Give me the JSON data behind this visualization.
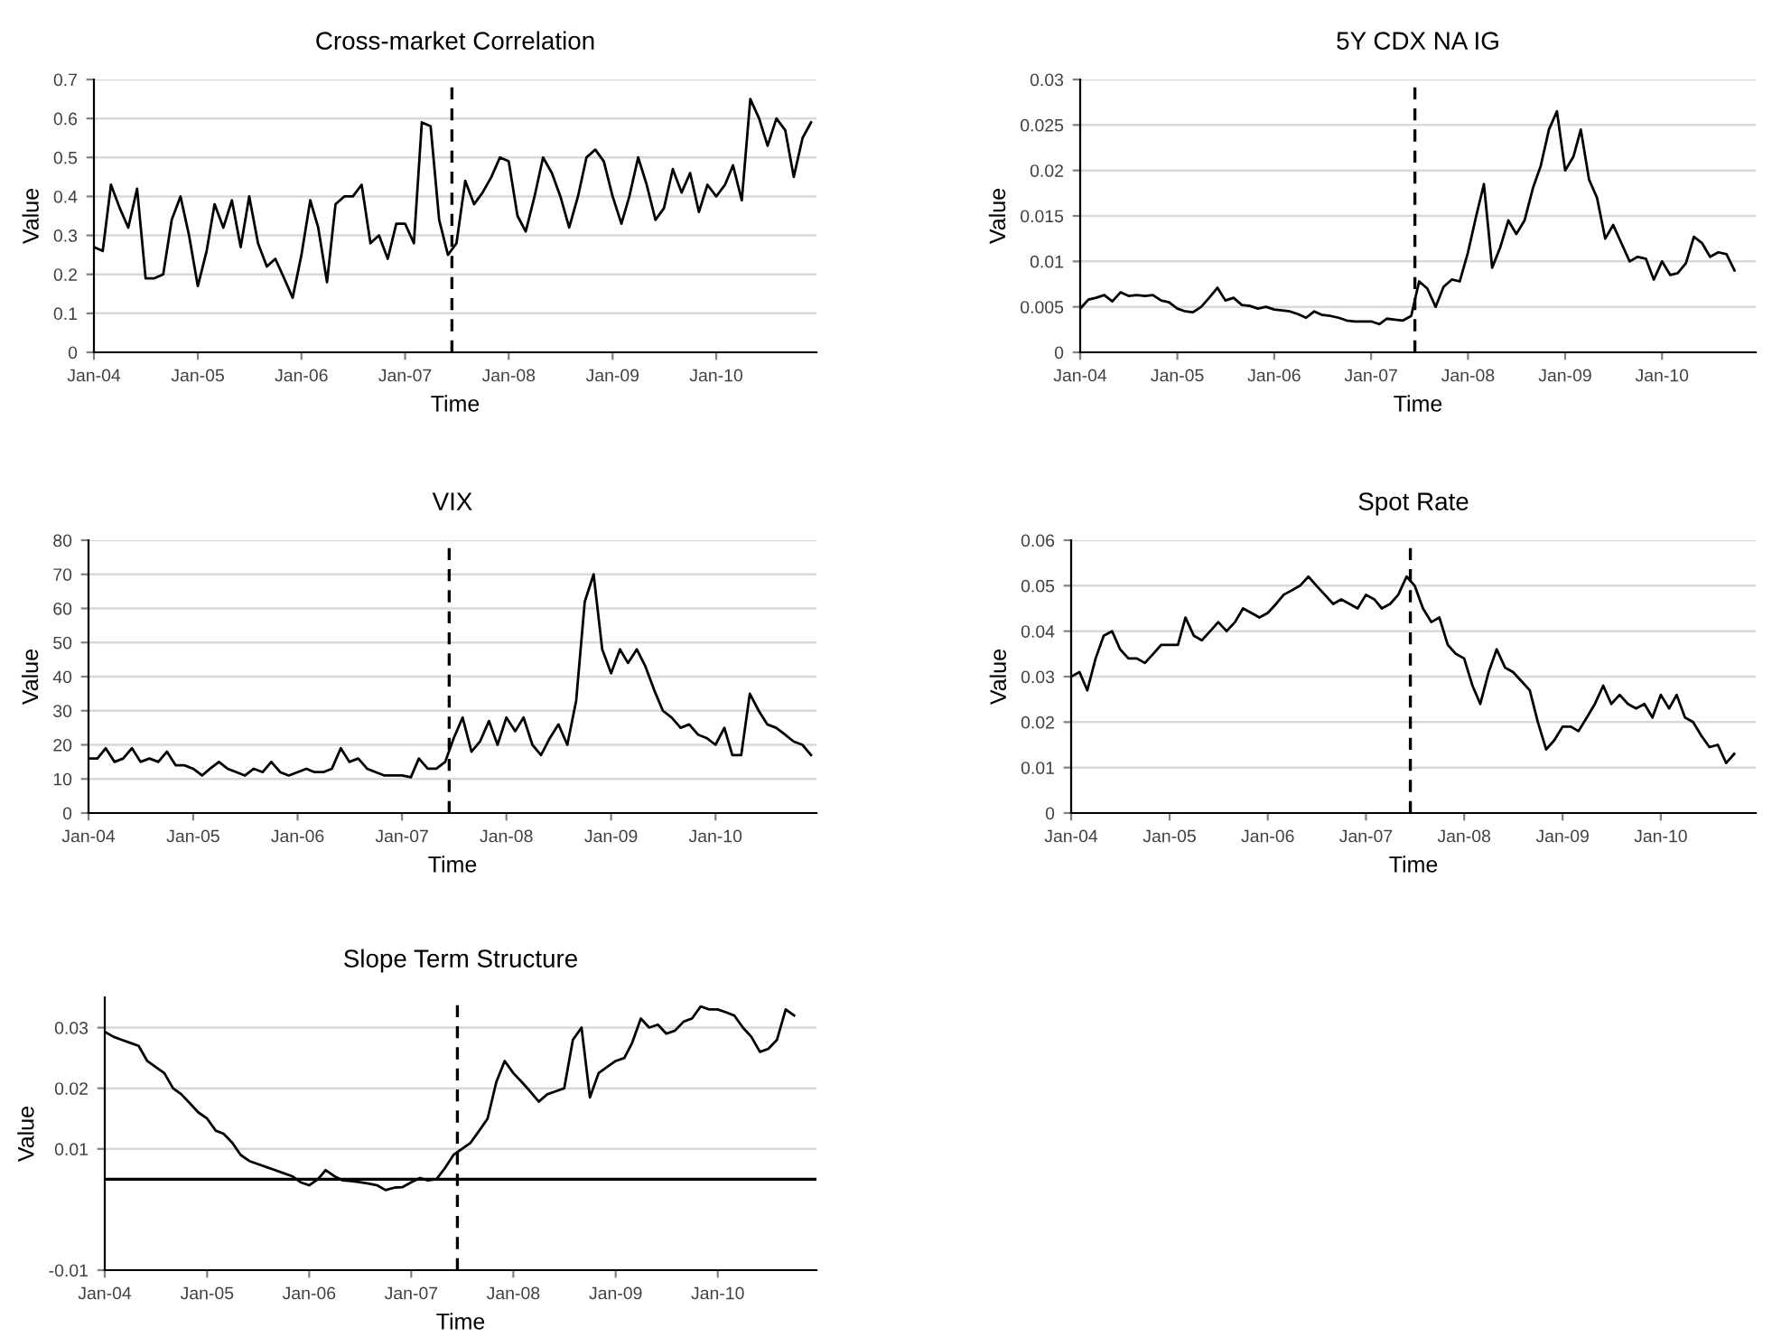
{
  "chart_data": [
    {
      "type": "line",
      "title": "Cross-market Correlation",
      "xlabel": "Time",
      "ylabel": "Value",
      "grid": "y",
      "line_style": "solid",
      "marker": "none",
      "x": [
        "2004-01",
        "2004-02",
        "2004-03",
        "2004-04",
        "2004-05",
        "2004-06",
        "2004-07",
        "2004-08",
        "2004-09",
        "2004-10",
        "2004-11",
        "2004-12",
        "2005-01",
        "2005-02",
        "2005-03",
        "2005-04",
        "2005-05",
        "2005-06",
        "2005-07",
        "2005-08",
        "2005-09",
        "2005-10",
        "2005-11",
        "2005-12",
        "2006-01",
        "2006-02",
        "2006-03",
        "2006-04",
        "2006-05",
        "2006-06",
        "2006-07",
        "2006-08",
        "2006-09",
        "2006-10",
        "2006-11",
        "2006-12",
        "2007-01",
        "2007-02",
        "2007-03",
        "2007-04",
        "2007-05",
        "2007-06",
        "2007-07",
        "2007-08",
        "2007-09",
        "2007-10",
        "2007-11",
        "2007-12",
        "2008-01",
        "2008-02",
        "2008-03",
        "2008-04",
        "2008-05",
        "2008-06",
        "2008-07",
        "2008-08",
        "2008-09",
        "2008-10",
        "2008-11",
        "2008-12",
        "2009-01",
        "2009-02",
        "2009-03",
        "2009-04",
        "2009-05",
        "2009-06",
        "2009-07",
        "2009-08",
        "2009-09",
        "2009-10",
        "2009-11",
        "2009-12",
        "2010-01",
        "2010-02",
        "2010-03",
        "2010-04",
        "2010-05",
        "2010-06",
        "2010-07",
        "2010-08",
        "2010-09",
        "2010-10",
        "2010-11",
        "2010-12"
      ],
      "series": [
        {
          "color": "#000000",
          "values": [
            0.27,
            0.26,
            0.43,
            0.37,
            0.32,
            0.42,
            0.19,
            0.19,
            0.2,
            0.34,
            0.4,
            0.3,
            0.17,
            0.26,
            0.38,
            0.32,
            0.39,
            0.27,
            0.4,
            0.28,
            0.22,
            0.24,
            0.19,
            0.14,
            0.25,
            0.39,
            0.32,
            0.18,
            0.38,
            0.4,
            0.4,
            0.43,
            0.28,
            0.3,
            0.24,
            0.33,
            0.33,
            0.28,
            0.59,
            0.58,
            0.34,
            0.25,
            0.28,
            0.44,
            0.38,
            0.41,
            0.45,
            0.5,
            0.49,
            0.35,
            0.31,
            0.4,
            0.5,
            0.46,
            0.4,
            0.32,
            0.4,
            0.5,
            0.52,
            0.49,
            0.4,
            0.33,
            0.4,
            0.5,
            0.43,
            0.34,
            0.37,
            0.47,
            0.41,
            0.46,
            0.36,
            0.43,
            0.4,
            0.43,
            0.48,
            0.39,
            0.65,
            0.6,
            0.53,
            0.6,
            0.57,
            0.45,
            0.55,
            0.59
          ]
        }
      ],
      "xlim": [
        "2004-01-01",
        "2010-12-20"
      ],
      "ylim": [
        0,
        0.7
      ],
      "yticks": [
        0,
        0.1,
        0.2,
        0.3,
        0.4,
        0.5,
        0.6,
        0.7
      ],
      "xticks": [
        {
          "value": "2004-01-01",
          "label": "Jan-04"
        },
        {
          "value": "2005-01-01",
          "label": "Jan-05"
        },
        {
          "value": "2006-01-01",
          "label": "Jan-06"
        },
        {
          "value": "2007-01-01",
          "label": "Jan-07"
        },
        {
          "value": "2008-01-01",
          "label": "Jan-08"
        },
        {
          "value": "2009-01-01",
          "label": "Jan-09"
        },
        {
          "value": "2010-01-01",
          "label": "Jan-10"
        }
      ],
      "ref_lines": [
        {
          "axis": "x",
          "value": "2007-06-15",
          "color": "#000000",
          "line_style": "dashed"
        }
      ]
    },
    {
      "type": "line",
      "title": "5Y CDX NA IG",
      "xlabel": "Time",
      "ylabel": "Value",
      "grid": "y",
      "line_style": "solid",
      "marker": "none",
      "x": [
        "2004-01",
        "2004-02",
        "2004-03",
        "2004-04",
        "2004-05",
        "2004-06",
        "2004-07",
        "2004-08",
        "2004-09",
        "2004-10",
        "2004-11",
        "2004-12",
        "2005-01",
        "2005-02",
        "2005-03",
        "2005-04",
        "2005-05",
        "2005-06",
        "2005-07",
        "2005-08",
        "2005-09",
        "2005-10",
        "2005-11",
        "2005-12",
        "2006-01",
        "2006-02",
        "2006-03",
        "2006-04",
        "2006-05",
        "2006-06",
        "2006-07",
        "2006-08",
        "2006-09",
        "2006-10",
        "2006-11",
        "2006-12",
        "2007-01",
        "2007-02",
        "2007-03",
        "2007-04",
        "2007-05",
        "2007-06",
        "2007-07",
        "2007-08",
        "2007-09",
        "2007-10",
        "2007-11",
        "2007-12",
        "2008-01",
        "2008-02",
        "2008-03",
        "2008-04",
        "2008-05",
        "2008-06",
        "2008-07",
        "2008-08",
        "2008-09",
        "2008-10",
        "2008-11",
        "2008-12",
        "2009-01",
        "2009-02",
        "2009-03",
        "2009-04",
        "2009-05",
        "2009-06",
        "2009-07",
        "2009-08",
        "2009-09",
        "2009-10",
        "2009-11",
        "2009-12",
        "2010-01",
        "2010-02",
        "2010-03",
        "2010-04",
        "2010-05",
        "2010-06",
        "2010-07",
        "2010-08",
        "2010-09",
        "2010-10"
      ],
      "series": [
        {
          "color": "#000000",
          "values": [
            0.0048,
            0.0058,
            0.006,
            0.0063,
            0.0056,
            0.0066,
            0.0062,
            0.0063,
            0.0062,
            0.0063,
            0.0057,
            0.0055,
            0.0048,
            0.0045,
            0.0044,
            0.005,
            0.006,
            0.0071,
            0.0057,
            0.006,
            0.0052,
            0.0051,
            0.0048,
            0.005,
            0.0047,
            0.0046,
            0.0045,
            0.0042,
            0.0038,
            0.0045,
            0.0041,
            0.004,
            0.0038,
            0.0035,
            0.0034,
            0.0034,
            0.0034,
            0.0031,
            0.0037,
            0.0036,
            0.0035,
            0.004,
            0.0078,
            0.007,
            0.005,
            0.0072,
            0.008,
            0.0078,
            0.011,
            0.015,
            0.0185,
            0.0093,
            0.0115,
            0.0145,
            0.013,
            0.0145,
            0.018,
            0.0205,
            0.0245,
            0.0265,
            0.02,
            0.0215,
            0.0245,
            0.019,
            0.017,
            0.0125,
            0.014,
            0.012,
            0.01,
            0.0105,
            0.0103,
            0.008,
            0.01,
            0.0085,
            0.0087,
            0.0098,
            0.0127,
            0.012,
            0.0105,
            0.011,
            0.0108,
            0.009
          ]
        }
      ],
      "xlim": [
        "2004-01-01",
        "2010-12-20"
      ],
      "ylim": [
        0,
        0.03
      ],
      "yticks": [
        0,
        0.005,
        0.01,
        0.015,
        0.02,
        0.025,
        0.03
      ],
      "xticks": [
        {
          "value": "2004-01-01",
          "label": "Jan-04"
        },
        {
          "value": "2005-01-01",
          "label": "Jan-05"
        },
        {
          "value": "2006-01-01",
          "label": "Jan-06"
        },
        {
          "value": "2007-01-01",
          "label": "Jan-07"
        },
        {
          "value": "2008-01-01",
          "label": "Jan-08"
        },
        {
          "value": "2009-01-01",
          "label": "Jan-09"
        },
        {
          "value": "2010-01-01",
          "label": "Jan-10"
        }
      ],
      "ref_lines": [
        {
          "axis": "x",
          "value": "2007-06-15",
          "color": "#000000",
          "line_style": "dashed"
        }
      ]
    },
    {
      "type": "line",
      "title": "VIX",
      "xlabel": "Time",
      "ylabel": "Value",
      "grid": "y",
      "line_style": "solid",
      "marker": "none",
      "x": [
        "2004-01",
        "2004-02",
        "2004-03",
        "2004-04",
        "2004-05",
        "2004-06",
        "2004-07",
        "2004-08",
        "2004-09",
        "2004-10",
        "2004-11",
        "2004-12",
        "2005-01",
        "2005-02",
        "2005-03",
        "2005-04",
        "2005-05",
        "2005-06",
        "2005-07",
        "2005-08",
        "2005-09",
        "2005-10",
        "2005-11",
        "2005-12",
        "2006-01",
        "2006-02",
        "2006-03",
        "2006-04",
        "2006-05",
        "2006-06",
        "2006-07",
        "2006-08",
        "2006-09",
        "2006-10",
        "2006-11",
        "2006-12",
        "2007-01",
        "2007-02",
        "2007-03",
        "2007-04",
        "2007-05",
        "2007-06",
        "2007-07",
        "2007-08",
        "2007-09",
        "2007-10",
        "2007-11",
        "2007-12",
        "2008-01",
        "2008-02",
        "2008-03",
        "2008-04",
        "2008-05",
        "2008-06",
        "2008-07",
        "2008-08",
        "2008-09",
        "2008-10",
        "2008-11",
        "2008-12",
        "2009-01",
        "2009-02",
        "2009-03",
        "2009-04",
        "2009-05",
        "2009-06",
        "2009-07",
        "2009-08",
        "2009-09",
        "2009-10",
        "2009-11",
        "2009-12",
        "2010-01",
        "2010-02",
        "2010-03",
        "2010-04",
        "2010-05",
        "2010-06",
        "2010-07",
        "2010-08",
        "2010-09",
        "2010-10",
        "2010-11",
        "2010-12"
      ],
      "series": [
        {
          "color": "#000000",
          "values": [
            16,
            16,
            19,
            15,
            16,
            19,
            15,
            16,
            15,
            18,
            14,
            14,
            13,
            11,
            13,
            15,
            13,
            12,
            11,
            13,
            12,
            15,
            12,
            11,
            12,
            13,
            12,
            12,
            13,
            19,
            15,
            16,
            13,
            12,
            11,
            11,
            11,
            10.5,
            16,
            13,
            13,
            15,
            22,
            28,
            18,
            21,
            27,
            20,
            28,
            24,
            28,
            20,
            17,
            22,
            26,
            20,
            33,
            62,
            70,
            48,
            41,
            48,
            44,
            48,
            43,
            36,
            30,
            28,
            25,
            26,
            23,
            22,
            20,
            25,
            17,
            17,
            35,
            30,
            26,
            25,
            23,
            21,
            20,
            17
          ]
        }
      ],
      "xlim": [
        "2004-01-01",
        "2010-12-20"
      ],
      "ylim": [
        0,
        80
      ],
      "yticks": [
        0,
        10,
        20,
        30,
        40,
        50,
        60,
        70,
        80
      ],
      "xticks": [
        {
          "value": "2004-01-01",
          "label": "Jan-04"
        },
        {
          "value": "2005-01-01",
          "label": "Jan-05"
        },
        {
          "value": "2006-01-01",
          "label": "Jan-06"
        },
        {
          "value": "2007-01-01",
          "label": "Jan-07"
        },
        {
          "value": "2008-01-01",
          "label": "Jan-08"
        },
        {
          "value": "2009-01-01",
          "label": "Jan-09"
        },
        {
          "value": "2010-01-01",
          "label": "Jan-10"
        }
      ],
      "ref_lines": [
        {
          "axis": "x",
          "value": "2007-06-15",
          "color": "#000000",
          "line_style": "dashed"
        }
      ]
    },
    {
      "type": "line",
      "title": "Spot Rate",
      "xlabel": "Time",
      "ylabel": "Value",
      "grid": "y",
      "line_style": "solid",
      "marker": "none",
      "x": [
        "2004-01",
        "2004-02",
        "2004-03",
        "2004-04",
        "2004-05",
        "2004-06",
        "2004-07",
        "2004-08",
        "2004-09",
        "2004-10",
        "2004-11",
        "2004-12",
        "2005-01",
        "2005-02",
        "2005-03",
        "2005-04",
        "2005-05",
        "2005-06",
        "2005-07",
        "2005-08",
        "2005-09",
        "2005-10",
        "2005-11",
        "2005-12",
        "2006-01",
        "2006-02",
        "2006-03",
        "2006-04",
        "2006-05",
        "2006-06",
        "2006-07",
        "2006-08",
        "2006-09",
        "2006-10",
        "2006-11",
        "2006-12",
        "2007-01",
        "2007-02",
        "2007-03",
        "2007-04",
        "2007-05",
        "2007-06",
        "2007-07",
        "2007-08",
        "2007-09",
        "2007-10",
        "2007-11",
        "2007-12",
        "2008-01",
        "2008-02",
        "2008-03",
        "2008-04",
        "2008-05",
        "2008-06",
        "2008-07",
        "2008-08",
        "2008-09",
        "2008-10",
        "2008-11",
        "2008-12",
        "2009-01",
        "2009-02",
        "2009-03",
        "2009-04",
        "2009-05",
        "2009-06",
        "2009-07",
        "2009-08",
        "2009-09",
        "2009-10",
        "2009-11",
        "2009-12",
        "2010-01",
        "2010-02",
        "2010-03",
        "2010-04",
        "2010-05",
        "2010-06",
        "2010-07",
        "2010-08",
        "2010-09",
        "2010-10"
      ],
      "series": [
        {
          "color": "#000000",
          "values": [
            0.03,
            0.031,
            0.027,
            0.034,
            0.039,
            0.04,
            0.036,
            0.034,
            0.034,
            0.033,
            0.035,
            0.037,
            0.037,
            0.037,
            0.043,
            0.039,
            0.038,
            0.04,
            0.042,
            0.04,
            0.042,
            0.045,
            0.044,
            0.043,
            0.044,
            0.046,
            0.048,
            0.049,
            0.05,
            0.052,
            0.05,
            0.048,
            0.046,
            0.047,
            0.046,
            0.045,
            0.048,
            0.047,
            0.045,
            0.046,
            0.048,
            0.052,
            0.05,
            0.045,
            0.042,
            0.043,
            0.037,
            0.035,
            0.034,
            0.028,
            0.024,
            0.031,
            0.036,
            0.032,
            0.031,
            0.029,
            0.027,
            0.02,
            0.014,
            0.016,
            0.019,
            0.019,
            0.018,
            0.021,
            0.024,
            0.028,
            0.024,
            0.026,
            0.024,
            0.023,
            0.024,
            0.021,
            0.026,
            0.023,
            0.026,
            0.021,
            0.02,
            0.017,
            0.0145,
            0.015,
            0.011,
            0.013
          ]
        }
      ],
      "xlim": [
        "2004-01-01",
        "2010-12-20"
      ],
      "ylim": [
        0,
        0.06
      ],
      "yticks": [
        0,
        0.01,
        0.02,
        0.03,
        0.04,
        0.05,
        0.06
      ],
      "xticks": [
        {
          "value": "2004-01-01",
          "label": "Jan-04"
        },
        {
          "value": "2005-01-01",
          "label": "Jan-05"
        },
        {
          "value": "2006-01-01",
          "label": "Jan-06"
        },
        {
          "value": "2007-01-01",
          "label": "Jan-07"
        },
        {
          "value": "2008-01-01",
          "label": "Jan-08"
        },
        {
          "value": "2009-01-01",
          "label": "Jan-09"
        },
        {
          "value": "2010-01-01",
          "label": "Jan-10"
        }
      ],
      "ref_lines": [
        {
          "axis": "x",
          "value": "2007-06-15",
          "color": "#000000",
          "line_style": "dashed"
        }
      ]
    },
    {
      "type": "line",
      "title": "Slope Term Structure",
      "xlabel": "Time",
      "ylabel": "Value",
      "grid": "y",
      "line_style": "solid",
      "marker": "none",
      "x": [
        "2004-01",
        "2004-02",
        "2004-03",
        "2004-04",
        "2004-05",
        "2004-06",
        "2004-07",
        "2004-08",
        "2004-09",
        "2004-10",
        "2004-11",
        "2004-12",
        "2005-01",
        "2005-02",
        "2005-03",
        "2005-04",
        "2005-05",
        "2005-06",
        "2005-07",
        "2005-08",
        "2005-09",
        "2005-10",
        "2005-11",
        "2005-12",
        "2006-01",
        "2006-02",
        "2006-03",
        "2006-04",
        "2006-05",
        "2006-06",
        "2006-07",
        "2006-08",
        "2006-09",
        "2006-10",
        "2006-11",
        "2006-12",
        "2007-01",
        "2007-02",
        "2007-03",
        "2007-04",
        "2007-05",
        "2007-06",
        "2007-07",
        "2007-08",
        "2007-09",
        "2007-10",
        "2007-11",
        "2007-12",
        "2008-01",
        "2008-02",
        "2008-03",
        "2008-04",
        "2008-05",
        "2008-06",
        "2008-07",
        "2008-08",
        "2008-09",
        "2008-10",
        "2008-11",
        "2008-12",
        "2009-01",
        "2009-02",
        "2009-03",
        "2009-04",
        "2009-05",
        "2009-06",
        "2009-07",
        "2009-08",
        "2009-09",
        "2009-10",
        "2009-11",
        "2009-12",
        "2010-01",
        "2010-02",
        "2010-03",
        "2010-04",
        "2010-05",
        "2010-06",
        "2010-07",
        "2010-08",
        "2010-09",
        "2010-10"
      ],
      "series": [
        {
          "color": "#000000",
          "values": [
            0.0293,
            0.0285,
            0.028,
            0.0275,
            0.027,
            0.0245,
            0.0235,
            0.0225,
            0.02,
            0.019,
            0.0175,
            0.016,
            0.015,
            0.013,
            0.0125,
            0.011,
            0.009,
            0.008,
            0.0075,
            0.007,
            0.0065,
            0.006,
            0.0055,
            0.0045,
            0.004,
            0.005,
            0.0065,
            0.0055,
            0.0048,
            0.0047,
            0.0045,
            0.0043,
            0.004,
            0.0032,
            0.0036,
            0.0037,
            0.0045,
            0.0052,
            0.0048,
            0.005,
            0.0068,
            0.009,
            0.01,
            0.011,
            0.013,
            0.015,
            0.021,
            0.0245,
            0.0225,
            0.021,
            0.0195,
            0.0178,
            0.019,
            0.0195,
            0.02,
            0.028,
            0.03,
            0.0185,
            0.0225,
            0.0235,
            0.0245,
            0.025,
            0.0275,
            0.0315,
            0.03,
            0.0305,
            0.029,
            0.0295,
            0.031,
            0.0315,
            0.0335,
            0.033,
            0.033,
            0.0325,
            0.032,
            0.03,
            0.0285,
            0.026,
            0.0265,
            0.028,
            0.033,
            0.032
          ]
        }
      ],
      "xlim": [
        "2004-01-01",
        "2010-12-20"
      ],
      "ylim": [
        -0.01,
        0.035
      ],
      "yticks": [
        -0.01,
        0.01,
        0.02,
        0.03
      ],
      "xticks": [
        {
          "value": "2004-01-01",
          "label": "Jan-04"
        },
        {
          "value": "2005-01-01",
          "label": "Jan-05"
        },
        {
          "value": "2006-01-01",
          "label": "Jan-06"
        },
        {
          "value": "2007-01-01",
          "label": "Jan-07"
        },
        {
          "value": "2008-01-01",
          "label": "Jan-08"
        },
        {
          "value": "2009-01-01",
          "label": "Jan-09"
        },
        {
          "value": "2010-01-01",
          "label": "Jan-10"
        }
      ],
      "ref_lines": [
        {
          "axis": "x",
          "value": "2007-06-15",
          "color": "#000000",
          "line_style": "dashed"
        },
        {
          "axis": "y",
          "value": 0.005,
          "color": "#000000",
          "line_style": "solid"
        }
      ]
    }
  ]
}
